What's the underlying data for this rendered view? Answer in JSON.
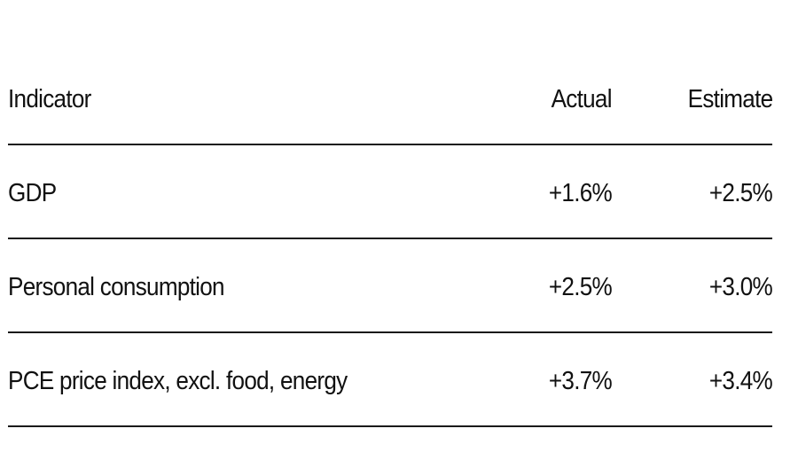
{
  "chart_data": {
    "type": "table",
    "columns": [
      "Indicator",
      "Actual",
      "Estimate"
    ],
    "rows": [
      {
        "indicator": "GDP",
        "actual": "+1.6%",
        "estimate": "+2.5%"
      },
      {
        "indicator": "Personal consumption",
        "actual": "+2.5%",
        "estimate": "+3.0%"
      },
      {
        "indicator": "PCE price index, excl. food, energy",
        "actual": "+3.7%",
        "estimate": "+3.4%"
      }
    ]
  }
}
